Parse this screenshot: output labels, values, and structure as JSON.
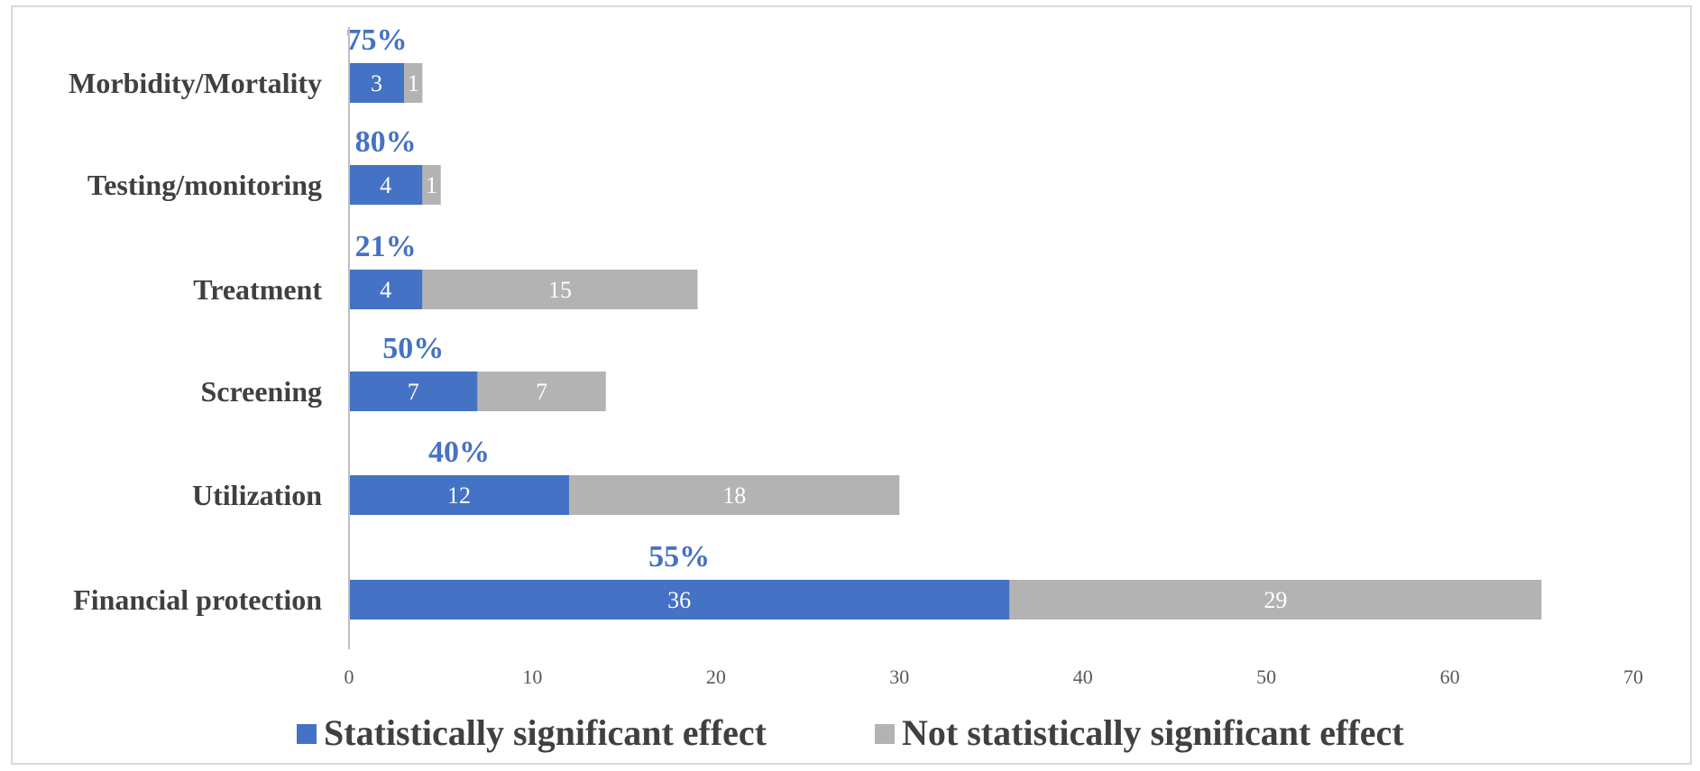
{
  "chart_data": {
    "type": "bar",
    "orientation": "horizontal",
    "stacked": true,
    "categories": [
      "Morbidity/Mortality",
      "Testing/monitoring",
      "Treatment",
      "Screening",
      "Utilization",
      "Financial protection"
    ],
    "series": [
      {
        "name": "Statistically significant effect",
        "values": [
          3,
          4,
          4,
          7,
          12,
          36
        ],
        "color": "#4472c4"
      },
      {
        "name": "Not statistically significant effect",
        "values": [
          1,
          1,
          15,
          7,
          18,
          29
        ],
        "color": "#b3b3b3"
      }
    ],
    "percent_labels": [
      "75%",
      "80%",
      "21%",
      "50%",
      "40%",
      "55%"
    ],
    "percent_color": "#4472c4",
    "xlim": [
      0,
      70
    ],
    "xticks": [
      0,
      10,
      20,
      30,
      40,
      50,
      60,
      70
    ],
    "title": "",
    "xlabel": "",
    "ylabel": "",
    "grid": false,
    "legend_position": "bottom"
  }
}
